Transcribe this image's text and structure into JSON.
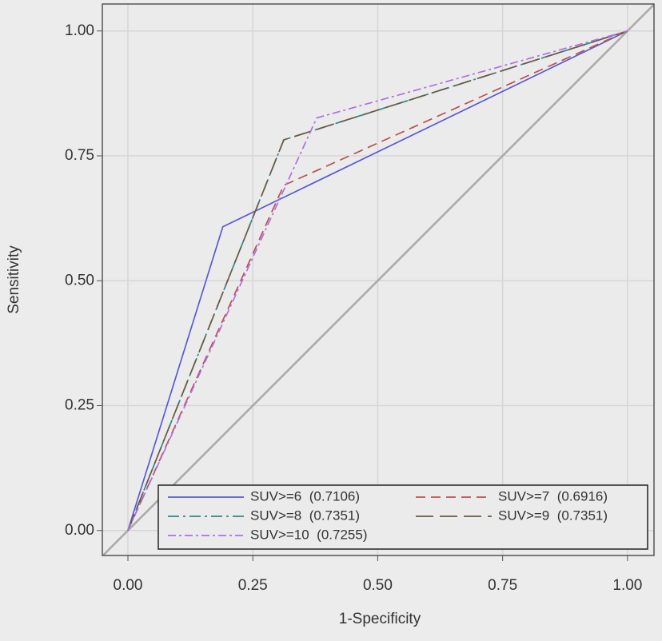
{
  "chart_data": {
    "type": "line",
    "xlabel": "1-Specificity",
    "ylabel": "Sensitivity",
    "xlim": [
      -0.0512,
      1.053
    ],
    "ylim": [
      -0.05,
      1.054
    ],
    "xticks": [
      {
        "value": 0,
        "label": "0.00"
      },
      {
        "value": 0.25,
        "label": "0.25"
      },
      {
        "value": 0.5,
        "label": "0.50"
      },
      {
        "value": 0.75,
        "label": "0.75"
      },
      {
        "value": 1,
        "label": "1.00"
      }
    ],
    "yticks": [
      {
        "value": 0,
        "label": "0.00"
      },
      {
        "value": 0.25,
        "label": "0.25"
      },
      {
        "value": 0.5,
        "label": "0.50"
      },
      {
        "value": 0.75,
        "label": "0.75"
      },
      {
        "value": 1,
        "label": "1.00"
      }
    ],
    "grid": true,
    "legend": "bottom-right",
    "series": [
      {
        "name": "SUV>=6  (0.7106)",
        "color": "#5a5ad6",
        "dash": "none",
        "x": [
          0,
          0.19,
          1
        ],
        "values": [
          0,
          0.608,
          1
        ]
      },
      {
        "name": "SUV>=7  (0.6916)",
        "color": "#b85252",
        "dash": "12 7",
        "x": [
          0,
          0.312,
          1
        ],
        "values": [
          0,
          0.691,
          1
        ]
      },
      {
        "name": "SUV>=8  (0.7351)",
        "color": "#2a8a8a",
        "dash": "14 5 3 5",
        "x": [
          0,
          0.312,
          1
        ],
        "values": [
          0,
          0.782,
          1
        ]
      },
      {
        "name": "SUV>=9  (0.7351)",
        "color": "#6b5a44",
        "dash": "22 8",
        "x": [
          0,
          0.312,
          1
        ],
        "values": [
          0,
          0.782,
          1
        ]
      },
      {
        "name": "SUV>=10  (0.7255)",
        "color": "#b070e0",
        "dash": "10 4 3 4",
        "x": [
          0,
          0.378,
          1
        ],
        "values": [
          0,
          0.826,
          1
        ]
      }
    ]
  }
}
